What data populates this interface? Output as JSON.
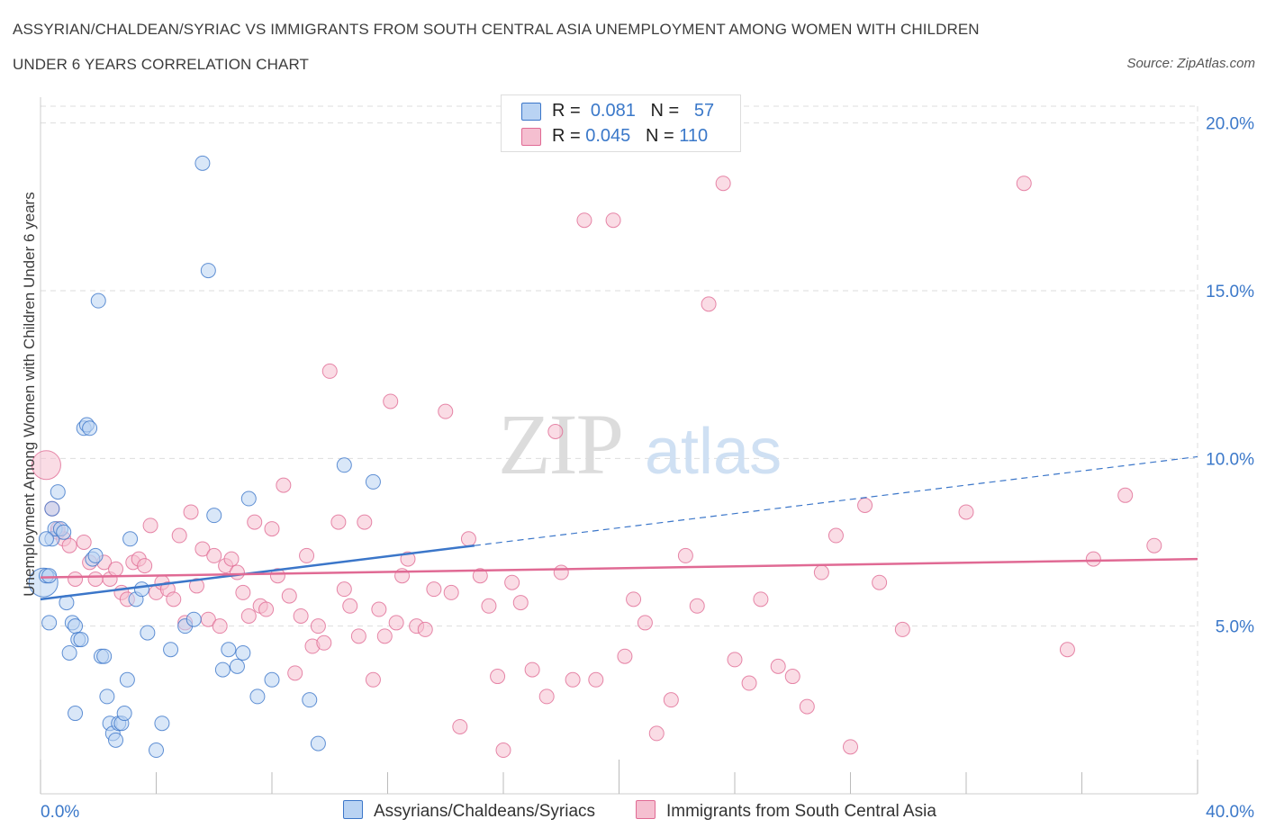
{
  "title_line1": "ASSYRIAN/CHALDEAN/SYRIAC VS IMMIGRANTS FROM SOUTH CENTRAL ASIA UNEMPLOYMENT AMONG WOMEN WITH CHILDREN",
  "title_line2": "UNDER 6 YEARS CORRELATION CHART",
  "source": "Source: ZipAtlas.com",
  "watermark": "ZIPatlas",
  "legend": {
    "row1": {
      "r_label": "R =",
      "r_value": "0.081",
      "n_label": "N =",
      "n_value": "57"
    },
    "row2": {
      "r_label": "R =",
      "r_value": "0.045",
      "n_label": "N =",
      "n_value": "110"
    }
  },
  "colors": {
    "blue": "#3b76c9",
    "blue_fill": "#b9d3f3",
    "pink": "#e06a94",
    "pink_fill": "#f5bfd0",
    "tick_text": "#3b78c9",
    "grid": "#dddddd"
  },
  "chart_data": {
    "type": "scatter",
    "xlabel": "",
    "ylabel": "Unemployment Among Women with Children Under 6 years",
    "xlim": [
      0,
      40
    ],
    "ylim": [
      0,
      20.5
    ],
    "x_tick_labels": [
      "0.0%",
      "40.0%"
    ],
    "y_ticks": [
      5,
      10,
      15,
      20
    ],
    "y_tick_labels": [
      "5.0%",
      "10.0%",
      "15.0%",
      "20.0%"
    ],
    "grid": true,
    "legend_position": "top-center",
    "series": [
      {
        "name": "Assyrians/Chaldeans/Syriacs",
        "color": "#3b76c9",
        "r": 0.081,
        "n": 57,
        "trend": {
          "x0": 0,
          "y0": 5.8,
          "x1": 15,
          "y1": 7.4,
          "dash_to_x": 40,
          "dash_to_y": 10.05
        },
        "points": [
          [
            0.1,
            6.3,
            "big"
          ],
          [
            0.2,
            6.5
          ],
          [
            0.3,
            6.5
          ],
          [
            0.4,
            7.6
          ],
          [
            0.5,
            7.9
          ],
          [
            0.6,
            9.0
          ],
          [
            0.7,
            7.9
          ],
          [
            0.8,
            7.8
          ],
          [
            0.9,
            5.7
          ],
          [
            1.0,
            4.2
          ],
          [
            1.1,
            5.1
          ],
          [
            1.2,
            5.0
          ],
          [
            1.3,
            4.6
          ],
          [
            1.4,
            4.6
          ],
          [
            1.5,
            10.9
          ],
          [
            1.6,
            11.0
          ],
          [
            1.7,
            10.9
          ],
          [
            1.8,
            7.0
          ],
          [
            1.9,
            7.1
          ],
          [
            2.0,
            14.7
          ],
          [
            2.1,
            4.1
          ],
          [
            2.2,
            4.1
          ],
          [
            2.3,
            2.9
          ],
          [
            2.4,
            2.1
          ],
          [
            2.5,
            1.8
          ],
          [
            2.6,
            1.6
          ],
          [
            2.7,
            2.1
          ],
          [
            2.8,
            2.1
          ],
          [
            2.9,
            2.4
          ],
          [
            3.0,
            3.4
          ],
          [
            3.1,
            7.6
          ],
          [
            3.3,
            5.8
          ],
          [
            3.5,
            6.1
          ],
          [
            3.7,
            4.8
          ],
          [
            4.0,
            1.3
          ],
          [
            4.2,
            2.1
          ],
          [
            4.5,
            4.3
          ],
          [
            5.0,
            5.0
          ],
          [
            5.3,
            5.2
          ],
          [
            5.6,
            18.8
          ],
          [
            5.8,
            15.6
          ],
          [
            6.0,
            8.3
          ],
          [
            6.3,
            3.7
          ],
          [
            6.5,
            4.3
          ],
          [
            6.8,
            3.8
          ],
          [
            7.0,
            4.2
          ],
          [
            7.2,
            8.8
          ],
          [
            7.5,
            2.9
          ],
          [
            8.0,
            3.4
          ],
          [
            9.3,
            2.8
          ],
          [
            9.6,
            1.5
          ],
          [
            10.5,
            9.8
          ],
          [
            11.5,
            9.3
          ],
          [
            0.3,
            5.1
          ],
          [
            1.2,
            2.4
          ],
          [
            0.2,
            7.6
          ],
          [
            0.4,
            8.5
          ]
        ]
      },
      {
        "name": "Immigrants from South Central Asia",
        "color": "#e06a94",
        "r": 0.045,
        "n": 110,
        "trend": {
          "x0": 0,
          "y0": 6.45,
          "x1": 40,
          "y1": 7.0
        },
        "points": [
          [
            0.2,
            9.8,
            "big"
          ],
          [
            0.4,
            8.5
          ],
          [
            0.6,
            7.8
          ],
          [
            0.8,
            7.6
          ],
          [
            1.0,
            7.4
          ],
          [
            1.2,
            6.4
          ],
          [
            1.5,
            7.5
          ],
          [
            1.7,
            6.9
          ],
          [
            1.9,
            6.4
          ],
          [
            2.2,
            6.9
          ],
          [
            2.4,
            6.4
          ],
          [
            2.6,
            6.7
          ],
          [
            2.8,
            6.0
          ],
          [
            3.0,
            5.8
          ],
          [
            3.2,
            6.9
          ],
          [
            3.4,
            7.0
          ],
          [
            3.6,
            6.8
          ],
          [
            3.8,
            8.0
          ],
          [
            4.0,
            6.0
          ],
          [
            4.2,
            6.3
          ],
          [
            4.4,
            6.1
          ],
          [
            4.6,
            5.8
          ],
          [
            4.8,
            7.7
          ],
          [
            5.0,
            5.1
          ],
          [
            5.2,
            8.4
          ],
          [
            5.4,
            6.2
          ],
          [
            5.6,
            7.3
          ],
          [
            5.8,
            5.2
          ],
          [
            6.0,
            7.1
          ],
          [
            6.2,
            5.0
          ],
          [
            6.4,
            6.8
          ],
          [
            6.6,
            7.0
          ],
          [
            6.8,
            6.6
          ],
          [
            7.0,
            6.0
          ],
          [
            7.2,
            5.3
          ],
          [
            7.4,
            8.1
          ],
          [
            7.6,
            5.6
          ],
          [
            7.8,
            5.5
          ],
          [
            8.0,
            7.9
          ],
          [
            8.2,
            6.5
          ],
          [
            8.4,
            9.2
          ],
          [
            8.6,
            5.9
          ],
          [
            8.8,
            3.6
          ],
          [
            9.0,
            5.3
          ],
          [
            9.2,
            7.1
          ],
          [
            9.4,
            4.4
          ],
          [
            9.6,
            5.0
          ],
          [
            9.8,
            4.5
          ],
          [
            10.0,
            12.6
          ],
          [
            10.3,
            8.1
          ],
          [
            10.5,
            6.1
          ],
          [
            10.7,
            5.6
          ],
          [
            11.0,
            4.7
          ],
          [
            11.2,
            8.1
          ],
          [
            11.5,
            3.4
          ],
          [
            11.7,
            5.5
          ],
          [
            11.9,
            4.7
          ],
          [
            12.1,
            11.7
          ],
          [
            12.3,
            5.1
          ],
          [
            12.5,
            6.5
          ],
          [
            12.7,
            7.0
          ],
          [
            13.0,
            5.0
          ],
          [
            13.3,
            4.9
          ],
          [
            13.6,
            6.1
          ],
          [
            14.0,
            11.4
          ],
          [
            14.2,
            6.0
          ],
          [
            14.5,
            2.0
          ],
          [
            14.8,
            7.6
          ],
          [
            15.2,
            6.5
          ],
          [
            15.5,
            5.6
          ],
          [
            15.8,
            3.5
          ],
          [
            16.0,
            1.3
          ],
          [
            16.3,
            6.3
          ],
          [
            16.6,
            5.7
          ],
          [
            17.0,
            3.7
          ],
          [
            17.5,
            2.9
          ],
          [
            17.8,
            10.8
          ],
          [
            18.0,
            6.6
          ],
          [
            18.4,
            3.4
          ],
          [
            18.8,
            17.1
          ],
          [
            19.2,
            3.4
          ],
          [
            19.8,
            17.1
          ],
          [
            20.2,
            4.1
          ],
          [
            20.5,
            5.8
          ],
          [
            20.9,
            5.1
          ],
          [
            21.3,
            1.8
          ],
          [
            21.8,
            2.8
          ],
          [
            22.3,
            7.1
          ],
          [
            22.7,
            5.6
          ],
          [
            23.1,
            14.6
          ],
          [
            23.6,
            18.2
          ],
          [
            24.0,
            4.0
          ],
          [
            24.5,
            3.3
          ],
          [
            24.9,
            5.8
          ],
          [
            25.5,
            3.8
          ],
          [
            26.0,
            3.5
          ],
          [
            26.5,
            2.6
          ],
          [
            27.0,
            6.6
          ],
          [
            27.5,
            7.7
          ],
          [
            28.0,
            1.4
          ],
          [
            28.5,
            8.6
          ],
          [
            29.0,
            6.3
          ],
          [
            29.8,
            4.9
          ],
          [
            32.0,
            8.4
          ],
          [
            34.0,
            18.2
          ],
          [
            35.5,
            4.3
          ],
          [
            36.4,
            7.0
          ],
          [
            37.5,
            8.9
          ],
          [
            38.5,
            7.4
          ],
          [
            0.6,
            7.9
          ]
        ]
      }
    ]
  },
  "bottom_legend": {
    "item1": "Assyrians/Chaldeans/Syriacs",
    "item2": "Immigrants from South Central Asia"
  }
}
